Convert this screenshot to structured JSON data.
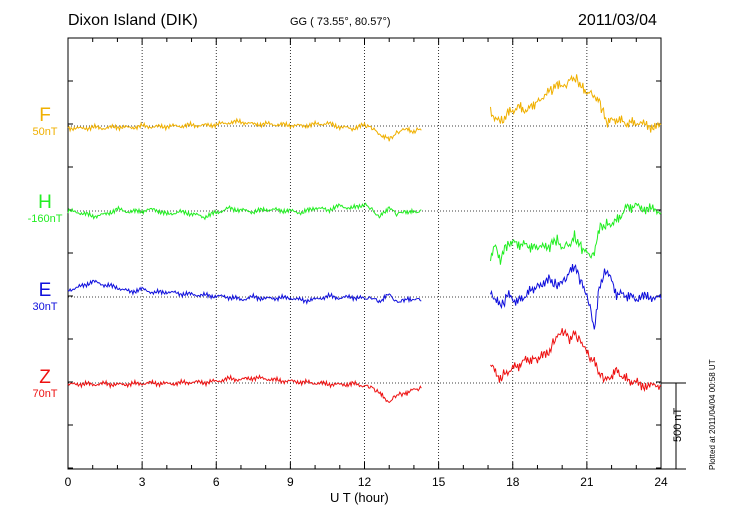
{
  "header": {
    "station": "Dixon Island (DIK)",
    "coords": "GG ( 73.55°,  80.57°)",
    "date": "2011/03/04"
  },
  "footer": {
    "plotted": "Plotted at 2011/04/04 00:58 UT"
  },
  "scale_bar": {
    "label": "500 nT",
    "value_nT": 500
  },
  "chart_data": {
    "type": "line",
    "title": "Dixon Island (DIK) GG ( 73.55°, 80.57°) 2011/03/04",
    "xlabel": "U T (hour)",
    "xlim": [
      0,
      24
    ],
    "xticks": [
      0,
      3,
      6,
      9,
      12,
      15,
      18,
      21,
      24
    ],
    "x_tick_labels": [
      "0",
      "3",
      "6",
      "9",
      "12",
      "15",
      "18",
      "21",
      "24"
    ],
    "grid": true,
    "data_gap_hours": [
      14.3,
      17.1
    ],
    "series": [
      {
        "name": "F",
        "offset_label": "50nT",
        "offset_nT": 50,
        "color": "#f0b000",
        "x": [
          0,
          0.5,
          1,
          1.5,
          2,
          2.5,
          3,
          3.5,
          4,
          4.5,
          5,
          5.5,
          6,
          6.5,
          7,
          7.5,
          8,
          8.5,
          9,
          9.5,
          10,
          10.5,
          11,
          11.5,
          12,
          12.3,
          12.6,
          13,
          13.3,
          13.6,
          14,
          14.3,
          null,
          17.1,
          17.3,
          17.5,
          17.8,
          18.2,
          18.6,
          19,
          19.5,
          19.8,
          20,
          20.3,
          20.5,
          20.8,
          21,
          21.3,
          21.5,
          21.8,
          22.2,
          22.6,
          23,
          23.5,
          24
        ],
        "values": [
          -10,
          -15,
          -8,
          -12,
          -5,
          -10,
          0,
          -5,
          -2,
          0,
          5,
          3,
          8,
          20,
          25,
          10,
          12,
          8,
          5,
          0,
          10,
          15,
          -5,
          -15,
          5,
          -10,
          -45,
          -80,
          -40,
          -20,
          -30,
          -15,
          null,
          80,
          50,
          15,
          70,
          110,
          90,
          150,
          200,
          240,
          220,
          260,
          280,
          230,
          200,
          180,
          150,
          20,
          40,
          15,
          20,
          0,
          -5
        ]
      },
      {
        "name": "H",
        "offset_label": "-160nT",
        "offset_nT": -160,
        "color": "#22ee22",
        "x": [
          0,
          0.5,
          1,
          1.5,
          2,
          2.5,
          3,
          3.5,
          4,
          4.5,
          5,
          5.5,
          6,
          6.5,
          7,
          7.5,
          8,
          8.5,
          9,
          9.5,
          10,
          10.5,
          11,
          11.5,
          12,
          12.3,
          12.6,
          13,
          13.3,
          13.6,
          14,
          14.3,
          null,
          17.1,
          17.3,
          17.5,
          17.8,
          18.2,
          18.6,
          19,
          19.5,
          19.8,
          20,
          20.3,
          20.5,
          20.8,
          21,
          21.3,
          21.5,
          21.8,
          22.2,
          22.6,
          23,
          23.5,
          24
        ],
        "values": [
          0,
          -10,
          -30,
          -20,
          10,
          -5,
          0,
          10,
          -20,
          -5,
          -15,
          -35,
          -10,
          15,
          5,
          -5,
          10,
          5,
          0,
          -10,
          20,
          5,
          30,
          15,
          40,
          10,
          -40,
          25,
          -20,
          0,
          -10,
          0,
          null,
          -280,
          -200,
          -280,
          -180,
          -190,
          -200,
          -220,
          -200,
          -160,
          -210,
          -190,
          -150,
          -220,
          -250,
          -260,
          -100,
          -80,
          -60,
          20,
          30,
          10,
          0
        ]
      },
      {
        "name": "E",
        "offset_label": "30nT",
        "offset_nT": 30,
        "color": "#1010dd",
        "x": [
          0,
          0.5,
          1,
          1.5,
          2,
          2.5,
          3,
          3.5,
          4,
          4.5,
          5,
          5.5,
          6,
          6.5,
          7,
          7.5,
          8,
          8.5,
          9,
          9.5,
          10,
          10.5,
          11,
          11.5,
          12,
          12.3,
          12.6,
          13,
          13.3,
          13.6,
          14,
          14.3,
          null,
          17.1,
          17.3,
          17.5,
          17.8,
          18.2,
          18.6,
          19,
          19.5,
          19.8,
          20,
          20.3,
          20.5,
          20.8,
          21,
          21.3,
          21.5,
          21.8,
          22.2,
          22.6,
          23,
          23.5,
          24
        ],
        "values": [
          40,
          60,
          90,
          70,
          55,
          30,
          45,
          25,
          30,
          20,
          15,
          10,
          5,
          0,
          -15,
          0,
          -10,
          -5,
          -5,
          -20,
          -15,
          5,
          -5,
          0,
          -10,
          -5,
          -25,
          15,
          -30,
          -20,
          -10,
          -15,
          null,
          30,
          -10,
          -60,
          10,
          -30,
          20,
          70,
          100,
          60,
          80,
          140,
          180,
          80,
          20,
          -180,
          60,
          160,
          20,
          10,
          -10,
          5,
          -10
        ]
      },
      {
        "name": "Z",
        "offset_label": "70nT",
        "offset_nT": 70,
        "color": "#ee1111",
        "x": [
          0,
          0.5,
          1,
          1.5,
          2,
          2.5,
          3,
          3.5,
          4,
          4.5,
          5,
          5.5,
          6,
          6.5,
          7,
          7.5,
          8,
          8.5,
          9,
          9.5,
          10,
          10.5,
          11,
          11.5,
          12,
          12.3,
          12.6,
          13,
          13.3,
          13.6,
          14,
          14.3,
          null,
          17.1,
          17.3,
          17.5,
          17.8,
          18.2,
          18.6,
          19,
          19.5,
          19.8,
          20,
          20.3,
          20.5,
          20.8,
          21,
          21.3,
          21.5,
          21.8,
          22.2,
          22.6,
          23,
          23.5,
          24
        ],
        "values": [
          -10,
          -5,
          -8,
          -4,
          -10,
          -6,
          -2,
          0,
          -5,
          0,
          5,
          3,
          10,
          25,
          20,
          30,
          25,
          15,
          10,
          5,
          0,
          -5,
          -10,
          -5,
          -15,
          -25,
          -60,
          -110,
          -70,
          -60,
          -40,
          -30,
          null,
          110,
          60,
          30,
          70,
          100,
          140,
          130,
          190,
          280,
          310,
          260,
          290,
          230,
          170,
          120,
          50,
          20,
          70,
          20,
          0,
          -20,
          -10
        ]
      }
    ]
  }
}
